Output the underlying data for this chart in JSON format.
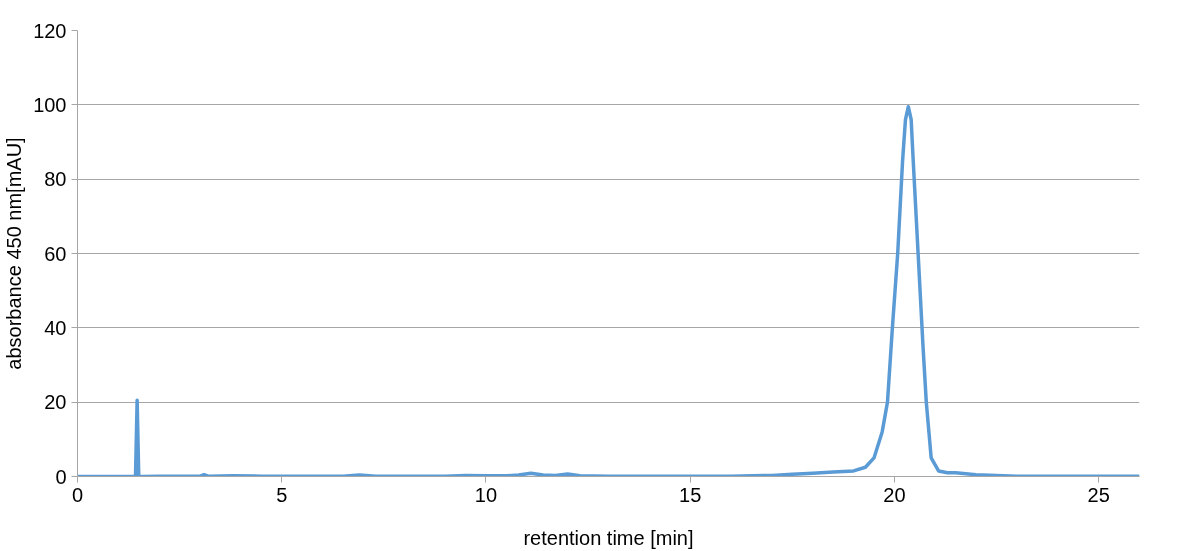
{
  "chart_data": {
    "type": "line",
    "xlabel": "retention time [min]",
    "ylabel": "absorbance 450 nm[mAU]",
    "xlim": [
      0,
      26
    ],
    "ylim": [
      0,
      120
    ],
    "xticks": [
      0,
      5,
      10,
      15,
      20,
      25
    ],
    "yticks": [
      0,
      20,
      40,
      60,
      80,
      100,
      120
    ],
    "grid": "y",
    "marker": "none",
    "line_style": "solid",
    "series": [
      {
        "color": "#5b9bd5",
        "x": [
          0,
          0.5,
          1.0,
          1.38,
          1.42,
          1.46,
          1.5,
          1.54,
          1.6,
          2.0,
          2.5,
          3.0,
          3.1,
          3.2,
          3.8,
          4.5,
          5.5,
          6.5,
          6.9,
          7.3,
          8.0,
          9.0,
          9.5,
          10.0,
          10.5,
          10.8,
          11.1,
          11.4,
          11.7,
          12.0,
          12.3,
          13.0,
          14.0,
          15.0,
          16.0,
          17.0,
          17.5,
          18.0,
          18.5,
          19.0,
          19.29,
          19.5,
          19.7,
          19.83,
          19.95,
          20.08,
          20.2,
          20.27,
          20.34,
          20.41,
          20.46,
          20.58,
          20.7,
          20.78,
          20.9,
          21.08,
          21.3,
          21.5,
          22.0,
          22.5,
          23.0,
          24.0,
          25.0,
          26.0
        ],
        "values": [
          0,
          0,
          0,
          0,
          0,
          20.5,
          0,
          0,
          0,
          0.1,
          0.1,
          0.1,
          0.5,
          0.1,
          0.2,
          0.1,
          0.1,
          0.1,
          0.4,
          0.1,
          0.1,
          0.1,
          0.3,
          0.2,
          0.2,
          0.4,
          0.9,
          0.4,
          0.3,
          0.7,
          0.2,
          0.1,
          0.1,
          0.1,
          0.1,
          0.3,
          0.6,
          0.9,
          1.2,
          1.5,
          2.5,
          5,
          12,
          20,
          40,
          60,
          85,
          96,
          99.5,
          96,
          85,
          60,
          35,
          20,
          5,
          1.5,
          1.0,
          1.0,
          0.5,
          0.3,
          0.1,
          0.1,
          0.1,
          0.1
        ]
      }
    ]
  }
}
